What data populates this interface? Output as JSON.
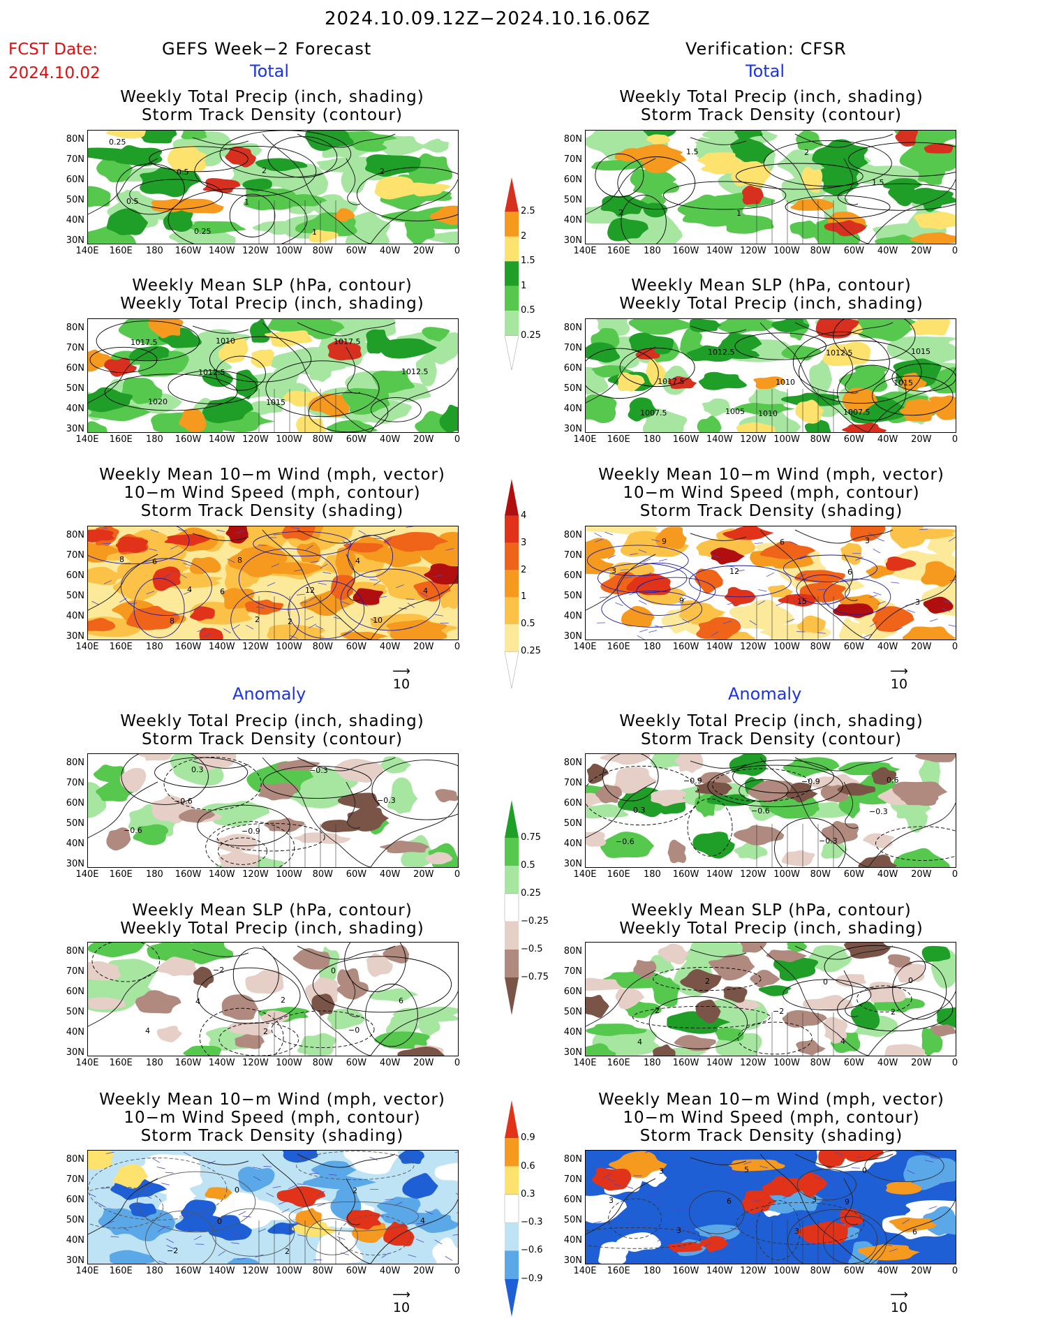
{
  "header": {
    "date_range": "2024.10.09.12Z−2024.10.16.06Z",
    "fcst_label": "FCST Date:",
    "fcst_date": "2024.10.02",
    "left_title": "GEFS Week−2 Forecast",
    "right_title": "Verification: CFSR",
    "total_label": "Total",
    "anomaly_label": "Anomaly"
  },
  "titles": {
    "precip_track": [
      "Weekly Total Precip (inch, shading)",
      "Storm Track Density (contour)"
    ],
    "slp_precip": [
      "Weekly Mean SLP (hPa, contour)",
      "Weekly Total Precip (inch, shading)"
    ],
    "wind_track": [
      "Weekly Mean 10−m Wind (mph, vector)",
      "10−m Wind Speed (mph, contour)",
      "Storm Track Density (shading)"
    ]
  },
  "axes": {
    "y_ticks": [
      "80N",
      "70N",
      "60N",
      "50N",
      "40N",
      "30N"
    ],
    "x_ticks": [
      "140E",
      "160E",
      "180",
      "160W",
      "140W",
      "120W",
      "100W",
      "80W",
      "60W",
      "40W",
      "20W",
      "0"
    ]
  },
  "vector_ref": "10",
  "colorbars": {
    "precip_total": {
      "labels": [
        "2.5",
        "2",
        "1.5",
        "1",
        "0.5",
        "0.25"
      ],
      "colors": [
        "#d7301f",
        "#f59a1e",
        "#fde36e",
        "#1f9e28",
        "#56c84e",
        "#a6e6a0",
        "#ffffff"
      ]
    },
    "track_total": {
      "labels": [
        "4",
        "3",
        "2",
        "1",
        "0.5",
        "0.25"
      ],
      "colors": [
        "#b10f0f",
        "#e0331a",
        "#f0641a",
        "#f59a1e",
        "#fbc247",
        "#fde99a",
        "#ffffff"
      ]
    },
    "precip_anom": {
      "labels": [
        "0.75",
        "0.5",
        "0.25",
        "−0.25",
        "−0.5",
        "−0.75"
      ],
      "colors": [
        "#1f9e28",
        "#56c84e",
        "#a6e6a0",
        "#ffffff",
        "#e6cfc7",
        "#b08a7e",
        "#7a5446"
      ]
    },
    "track_anom": {
      "labels": [
        "0.9",
        "0.6",
        "0.3",
        "−0.3",
        "−0.6",
        "−0.9"
      ],
      "colors": [
        "#e0331a",
        "#f59a1e",
        "#fde36e",
        "#ffffff",
        "#bde3f5",
        "#5aa8e8",
        "#1e5fd6"
      ]
    }
  },
  "contour_labels": {
    "gefs_total_precip": [
      "0.25",
      "0.5",
      "1",
      "1",
      "2",
      "0.5",
      "0.25",
      "2"
    ],
    "cfsr_total_precip": [
      "1",
      "2",
      "1.5",
      "2",
      "1.5"
    ],
    "gefs_total_slp": [
      "1017.5",
      "1012.5",
      "1015",
      "1017.5",
      "1012.5",
      "1020",
      "1010"
    ],
    "cfsr_total_slp": [
      "1010",
      "1012.5",
      "1015",
      "1007.5",
      "1012.5",
      "1010",
      "1007.5",
      "1015",
      "1017.5",
      "1005"
    ],
    "gefs_total_wind": [
      "6",
      "6",
      "2",
      "4",
      "4",
      "8",
      "8",
      "12",
      "10",
      "8",
      "4",
      "2"
    ],
    "cfsr_total_wind": [
      "6",
      "6",
      "3",
      "9",
      "12",
      "15",
      "3",
      "3",
      "9"
    ],
    "gefs_anom_precip": [
      "−0.6",
      "−0.9",
      "−0.3",
      "−0.3",
      "−0.6",
      "0.3"
    ],
    "cfsr_anom_precip": [
      "−0.9",
      "−0.3",
      "−0.6",
      "−0.9",
      "−0.6",
      "−0.3",
      "0.6",
      "0.3"
    ],
    "gefs_anom_slp": [
      "4",
      "2",
      "0",
      "6",
      "4",
      "−2",
      "2",
      "−0"
    ],
    "cfsr_anom_slp": [
      "0",
      "2",
      "4",
      "2",
      "−2",
      "4",
      "0",
      "2"
    ],
    "gefs_anom_wind": [
      "0",
      "2",
      "2",
      "4",
      "−2",
      "0"
    ],
    "cfsr_anom_wind": [
      "9",
      "6",
      "3",
      "6",
      "3",
      "0",
      "3",
      "3",
      "5",
      "3"
    ]
  }
}
